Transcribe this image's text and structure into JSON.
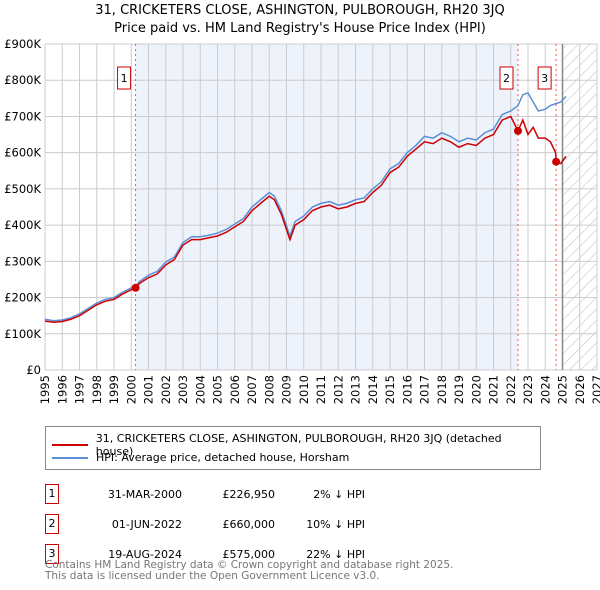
{
  "chart_data": {
    "type": "line",
    "title": "31, CRICKETERS CLOSE, ASHINGTON, PULBOROUGH, RH20 3JQ",
    "subtitle": "Price paid vs. HM Land Registry's House Price Index (HPI)",
    "xlim": [
      1995,
      2027
    ],
    "ylim": [
      0,
      900000
    ],
    "x_ticks": [
      "1995",
      "1996",
      "1997",
      "1998",
      "1999",
      "2000",
      "2001",
      "2002",
      "2003",
      "2004",
      "2005",
      "2006",
      "2007",
      "2008",
      "2009",
      "2010",
      "2011",
      "2012",
      "2013",
      "2014",
      "2015",
      "2016",
      "2017",
      "2018",
      "2019",
      "2020",
      "2021",
      "2022",
      "2023",
      "2024",
      "2025",
      "2026",
      "2027"
    ],
    "y_ticks": [
      {
        "v": 0,
        "label": "£0"
      },
      {
        "v": 100000,
        "label": "£100K"
      },
      {
        "v": 200000,
        "label": "£200K"
      },
      {
        "v": 300000,
        "label": "£300K"
      },
      {
        "v": 400000,
        "label": "£400K"
      },
      {
        "v": 500000,
        "label": "£500K"
      },
      {
        "v": 600000,
        "label": "£600K"
      },
      {
        "v": 700000,
        "label": "£700K"
      },
      {
        "v": 800000,
        "label": "£800K"
      },
      {
        "v": 900000,
        "label": "£900K"
      }
    ],
    "grid": true,
    "series": [
      {
        "name": "31, CRICKETERS CLOSE, ASHINGTON, PULBOROUGH, RH20 3JQ (detached house)",
        "color": "#cc0000",
        "x": [
          1995,
          1995.5,
          1996,
          1996.5,
          1997,
          1997.5,
          1998,
          1998.5,
          1999,
          1999.5,
          2000.25,
          2000.5,
          2001,
          2001.5,
          2002,
          2002.5,
          2003,
          2003.5,
          2004,
          2004.5,
          2005,
          2005.5,
          2006,
          2006.5,
          2007,
          2007.5,
          2008,
          2008.3,
          2008.7,
          2009.2,
          2009.5,
          2010,
          2010.5,
          2011,
          2011.5,
          2012,
          2012.5,
          2013,
          2013.5,
          2014,
          2014.5,
          2015,
          2015.5,
          2016,
          2016.5,
          2017,
          2017.5,
          2018,
          2018.5,
          2019,
          2019.5,
          2020,
          2020.5,
          2021,
          2021.5,
          2022,
          2022.42,
          2022.7,
          2023,
          2023.3,
          2023.6,
          2024,
          2024.3,
          2024.6,
          2024.63,
          2024.9,
          2025.2
        ],
        "y": [
          135000,
          132000,
          134000,
          140000,
          150000,
          165000,
          180000,
          190000,
          195000,
          210000,
          226950,
          240000,
          255000,
          265000,
          290000,
          305000,
          345000,
          360000,
          360000,
          365000,
          370000,
          380000,
          395000,
          410000,
          440000,
          460000,
          480000,
          470000,
          430000,
          360000,
          400000,
          415000,
          440000,
          450000,
          455000,
          445000,
          450000,
          460000,
          465000,
          490000,
          510000,
          545000,
          560000,
          590000,
          610000,
          630000,
          625000,
          640000,
          630000,
          615000,
          625000,
          620000,
          640000,
          650000,
          690000,
          700000,
          660000,
          690000,
          650000,
          670000,
          640000,
          640000,
          630000,
          600000,
          575000,
          570000,
          590000
        ]
      },
      {
        "name": "HPI: Average price, detached house, Horsham",
        "color": "#5b8fd6",
        "x": [
          1995,
          1995.5,
          1996,
          1996.5,
          1997,
          1997.5,
          1998,
          1998.5,
          1999,
          1999.5,
          2000.25,
          2000.5,
          2001,
          2001.5,
          2002,
          2002.5,
          2003,
          2003.5,
          2004,
          2004.5,
          2005,
          2005.5,
          2006,
          2006.5,
          2007,
          2007.5,
          2008,
          2008.3,
          2008.7,
          2009.2,
          2009.5,
          2010,
          2010.5,
          2011,
          2011.5,
          2012,
          2012.5,
          2013,
          2013.5,
          2014,
          2014.5,
          2015,
          2015.5,
          2016,
          2016.5,
          2017,
          2017.5,
          2018,
          2018.5,
          2019,
          2019.5,
          2020,
          2020.5,
          2021,
          2021.5,
          2022,
          2022.42,
          2022.7,
          2023,
          2023.3,
          2023.6,
          2024,
          2024.3,
          2024.6,
          2024.9,
          2025.2
        ],
        "y": [
          140000,
          136000,
          138000,
          144000,
          155000,
          170000,
          185000,
          195000,
          200000,
          215000,
          232000,
          245000,
          262000,
          272000,
          298000,
          312000,
          352000,
          368000,
          368000,
          372000,
          378000,
          388000,
          403000,
          418000,
          450000,
          470000,
          490000,
          480000,
          440000,
          370000,
          410000,
          425000,
          450000,
          460000,
          465000,
          455000,
          460000,
          470000,
          475000,
          500000,
          520000,
          555000,
          570000,
          600000,
          620000,
          645000,
          640000,
          655000,
          645000,
          630000,
          640000,
          635000,
          655000,
          665000,
          705000,
          715000,
          730000,
          760000,
          765000,
          740000,
          715000,
          720000,
          730000,
          735000,
          740000,
          755000
        ]
      }
    ],
    "sales": [
      {
        "id": "1",
        "x": 2000.25,
        "y": 226950,
        "date": "31-MAR-2000",
        "price": "£226,950",
        "hpi": "2% ↓ HPI"
      },
      {
        "id": "2",
        "x": 2022.42,
        "y": 660000,
        "date": "01-JUN-2022",
        "price": "£660,000",
        "hpi": "10% ↓ HPI"
      },
      {
        "id": "3",
        "x": 2024.63,
        "y": 575000,
        "date": "19-AUG-2024",
        "price": "£575,000",
        "hpi": "22% ↓ HPI"
      }
    ],
    "shaded_range": [
      2000.25,
      2022.42
    ],
    "forecast_from": 2025
  },
  "legend": {
    "red": "31, CRICKETERS CLOSE, ASHINGTON, PULBOROUGH, RH20 3JQ (detached house)",
    "blue": "HPI: Average price, detached house, Horsham"
  },
  "footer": {
    "line1": "Contains HM Land Registry data © Crown copyright and database right 2025.",
    "line2": "This data is licensed under the Open Government Licence v3.0."
  }
}
